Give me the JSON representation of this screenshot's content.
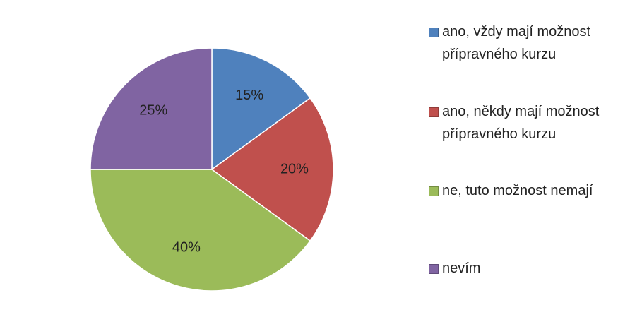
{
  "chart_data": {
    "type": "pie",
    "categories": [
      "ano, vždy mají možnost přípravného kurzu",
      "ano, někdy mají možnost přípravného kurzu",
      "ne, tuto možnost nemají",
      "nevím"
    ],
    "values": [
      15,
      20,
      40,
      25
    ],
    "value_labels": [
      "15%",
      "20%",
      "40%",
      "25%"
    ],
    "colors": [
      "#4f81bd",
      "#c0504d",
      "#9bbb59",
      "#8064a2"
    ],
    "legend": "right"
  }
}
